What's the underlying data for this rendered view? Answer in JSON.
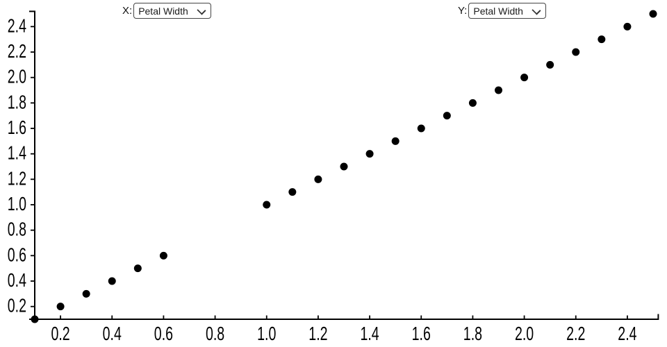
{
  "controls": {
    "x": {
      "label": "X:",
      "selected": "Petal Width",
      "options": [
        "Petal Width"
      ]
    },
    "y": {
      "label": "Y:",
      "selected": "Petal Width",
      "options": [
        "Petal Width"
      ]
    }
  },
  "chart_data": {
    "type": "scatter",
    "title": "",
    "xlabel": "",
    "ylabel": "",
    "x_variable": "Petal Width",
    "y_variable": "Petal Width",
    "points": [
      [
        0.1,
        0.1
      ],
      [
        0.2,
        0.2
      ],
      [
        0.3,
        0.3
      ],
      [
        0.4,
        0.4
      ],
      [
        0.5,
        0.5
      ],
      [
        0.6,
        0.6
      ],
      [
        1.0,
        1.0
      ],
      [
        1.1,
        1.1
      ],
      [
        1.2,
        1.2
      ],
      [
        1.3,
        1.3
      ],
      [
        1.4,
        1.4
      ],
      [
        1.5,
        1.5
      ],
      [
        1.6,
        1.6
      ],
      [
        1.7,
        1.7
      ],
      [
        1.8,
        1.8
      ],
      [
        1.9,
        1.9
      ],
      [
        2.0,
        2.0
      ],
      [
        2.1,
        2.1
      ],
      [
        2.2,
        2.2
      ],
      [
        2.3,
        2.3
      ],
      [
        2.4,
        2.4
      ],
      [
        2.5,
        2.5
      ]
    ],
    "x_ticks": [
      0.2,
      0.4,
      0.6,
      0.8,
      1.0,
      1.2,
      1.4,
      1.6,
      1.8,
      2.0,
      2.2,
      2.4
    ],
    "y_ticks": [
      0.2,
      0.4,
      0.6,
      0.8,
      1.0,
      1.2,
      1.4,
      1.6,
      1.8,
      2.0,
      2.2,
      2.4
    ],
    "xlim": [
      0.1,
      2.52
    ],
    "ylim": [
      0.1,
      2.52
    ],
    "grid": false,
    "legend": false,
    "point_color": "#000000",
    "axis_color": "#000000"
  }
}
